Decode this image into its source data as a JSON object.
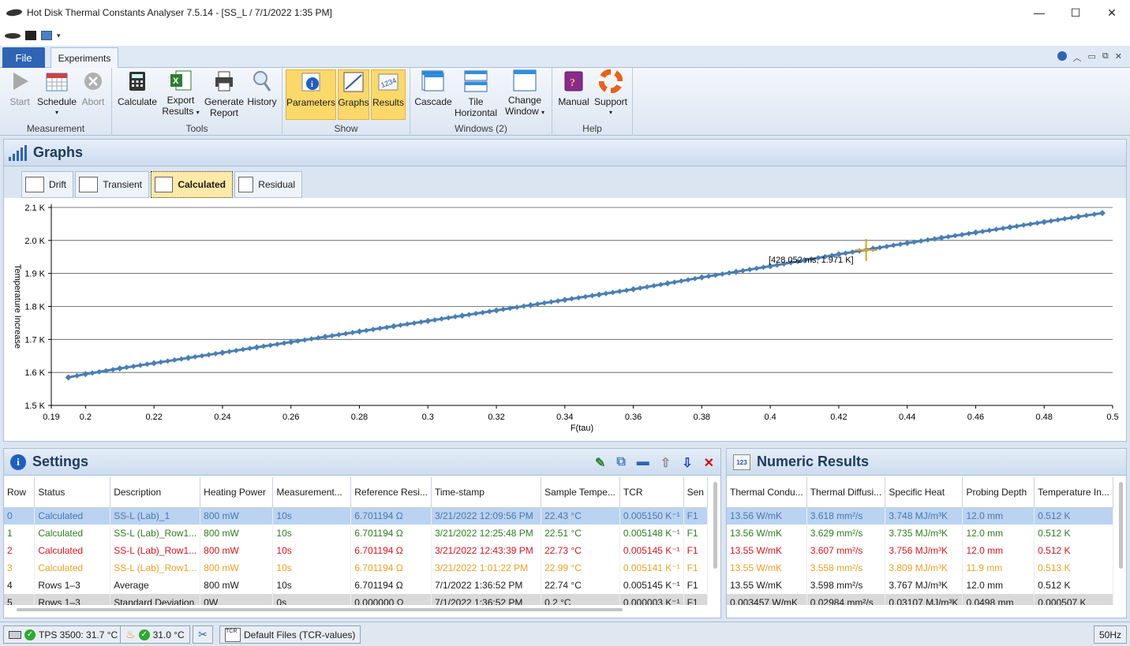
{
  "window": {
    "title": "Hot Disk Thermal Constants Analyser 7.5.14 - [SS_L  /  7/1/2022 1:35 PM]",
    "minimize": "—",
    "maximize": "☐",
    "close": "✕"
  },
  "ribbon": {
    "tabs": {
      "file": "File",
      "experiments": "Experiments"
    },
    "groups": {
      "measurement": {
        "label": "Measurement",
        "start": "Start",
        "schedule": "Schedule",
        "abort": "Abort"
      },
      "tools": {
        "label": "Tools",
        "calculate": "Calculate",
        "export1": "Export",
        "export2": "Results",
        "generate1": "Generate",
        "generate2": "Report",
        "history": "History"
      },
      "show": {
        "label": "Show",
        "parameters": "Parameters",
        "graphs": "Graphs",
        "results": "Results"
      },
      "windows": {
        "label": "Windows (2)",
        "cascade": "Cascade",
        "tile1": "Tile",
        "tile2": "Horizontal",
        "change1": "Change",
        "change2": "Window"
      },
      "help": {
        "label": "Help",
        "manual": "Manual",
        "support": "Support"
      }
    }
  },
  "graphs": {
    "title": "Graphs",
    "tabs": [
      "Drift",
      "Transient",
      "Calculated",
      "Residual"
    ],
    "selected_tab": "Calculated",
    "cursor_label": "[428.052 ms, 1.971 K]"
  },
  "chart_data": {
    "type": "line",
    "xlabel": "F(tau)",
    "ylabel": "Temperature Increase",
    "xlim": [
      0.19,
      0.5
    ],
    "ylim": [
      1.5,
      2.1
    ],
    "xticks": [
      "0.19",
      "0.2",
      "0.22",
      "0.24",
      "0.26",
      "0.28",
      "0.3",
      "0.32",
      "0.34",
      "0.36",
      "0.38",
      "0.4",
      "0.42",
      "0.44",
      "0.46",
      "0.48",
      "0.5"
    ],
    "yticks": [
      "1.5 K",
      "1.6 K",
      "1.7 K",
      "1.8 K",
      "1.9 K",
      "2.0 K",
      "2.1 K"
    ],
    "x": [
      0.195,
      0.2,
      0.21,
      0.22,
      0.23,
      0.24,
      0.25,
      0.26,
      0.27,
      0.28,
      0.29,
      0.3,
      0.31,
      0.32,
      0.33,
      0.34,
      0.35,
      0.36,
      0.37,
      0.38,
      0.39,
      0.4,
      0.41,
      0.42,
      0.43,
      0.44,
      0.45,
      0.46,
      0.47,
      0.48,
      0.49,
      0.497
    ],
    "y": [
      1.585,
      1.595,
      1.612,
      1.628,
      1.644,
      1.66,
      1.676,
      1.692,
      1.708,
      1.724,
      1.74,
      1.756,
      1.772,
      1.788,
      1.804,
      1.82,
      1.836,
      1.852,
      1.87,
      1.888,
      1.905,
      1.922,
      1.94,
      1.958,
      1.975,
      1.992,
      2.008,
      2.024,
      2.04,
      2.056,
      2.072,
      2.083
    ],
    "series": [
      {
        "name": "",
        "color": "#4a7fb3"
      }
    ],
    "cursor": {
      "x": 0.428,
      "y": 1.971,
      "color": "#e0a020"
    },
    "grid": "horizontal"
  },
  "settings": {
    "title": "Settings",
    "columns": [
      "Row",
      "Status",
      "Description",
      "Heating Power",
      "Measurement...",
      "Reference Resi...",
      "Time-stamp",
      "Sample Tempe...",
      "TCR",
      "Sen"
    ],
    "rows": [
      [
        "0",
        "Calculated",
        "SS-L (Lab)_1",
        "800 mW",
        "10s",
        "6.701194 Ω",
        "3/21/2022 12:09:56 PM",
        "22.43 °C",
        "0.005150 K⁻¹",
        "F1"
      ],
      [
        "1",
        "Calculated",
        "SS-L (Lab)_Row1...",
        "800 mW",
        "10s",
        "6.701194 Ω",
        "3/21/2022 12:25:48 PM",
        "22.51 °C",
        "0.005148 K⁻¹",
        "F1"
      ],
      [
        "2",
        "Calculated",
        "SS-L (Lab)_Row1...",
        "800 mW",
        "10s",
        "6.701194 Ω",
        "3/21/2022 12:43:39 PM",
        "22.73 °C",
        "0.005145 K⁻¹",
        "F1"
      ],
      [
        "3",
        "Calculated",
        "SS-L (Lab)_Row1...",
        "800 mW",
        "10s",
        "6.701194 Ω",
        "3/21/2022 1:01:22 PM",
        "22.99 °C",
        "0.005141 K⁻¹",
        "F1"
      ],
      [
        "4",
        "Rows 1–3",
        "Average",
        "800 mW",
        "10s",
        "6.701194 Ω",
        "7/1/2022 1:36:52 PM",
        "22.74 °C",
        "0.005145 K⁻¹",
        "F1"
      ],
      [
        "5",
        "Rows 1–3",
        "Standard Deviation",
        "0W",
        "0s",
        "0.000000 Ω",
        "7/1/2022 1:36:52 PM",
        "0.2 °C",
        "0.000003 K⁻¹",
        "F1"
      ]
    ]
  },
  "numeric": {
    "title": "Numeric Results",
    "columns": [
      "Thermal Condu...",
      "Thermal Diffusi...",
      "Specific Heat",
      "Probing Depth",
      "Temperature In..."
    ],
    "rows": [
      [
        "13.56 W/mK",
        "3.618 mm²/s",
        "3.748 MJ/m³K",
        "12.0 mm",
        "0.512 K"
      ],
      [
        "13.56 W/mK",
        "3.629 mm²/s",
        "3.735 MJ/m³K",
        "12.0 mm",
        "0.512 K"
      ],
      [
        "13.55 W/mK",
        "3.607 mm²/s",
        "3.756 MJ/m³K",
        "12.0 mm",
        "0.512 K"
      ],
      [
        "13.55 W/mK",
        "3.558 mm²/s",
        "3.809 MJ/m³K",
        "11.9 mm",
        "0.513 K"
      ],
      [
        "13.55 W/mK",
        "3.598 mm²/s",
        "3.767 MJ/m³K",
        "12.0 mm",
        "0.512 K"
      ],
      [
        "0.003457 W/mK",
        "0.02984 mm²/s",
        "0.03107 MJ/m³K",
        "0.0498 mm",
        "0.000507 K"
      ]
    ]
  },
  "status": {
    "instrument": "TPS 3500: 31.7 °C",
    "temperature": "31.0 °C",
    "tcr": "Default Files (TCR-values)",
    "freq": "50Hz"
  }
}
